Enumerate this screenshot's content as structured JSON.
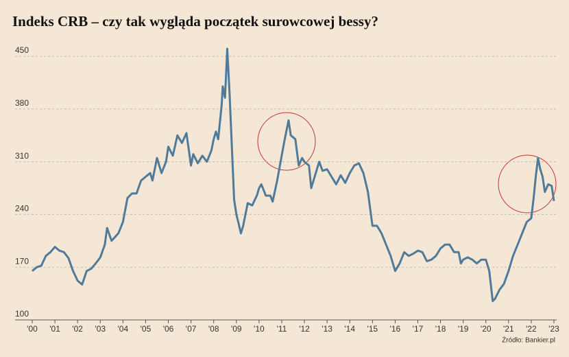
{
  "chart_data": {
    "type": "line",
    "title": "Indeks CRB – czy tak wygląda początek surowcowej bessy?",
    "source": "Źródło: Bankier.pl",
    "x": [
      2000.0,
      2000.2,
      2000.4,
      2000.6,
      2000.8,
      2001.0,
      2001.2,
      2001.4,
      2001.6,
      2001.8,
      2002.0,
      2002.2,
      2002.4,
      2002.6,
      2002.8,
      2003.0,
      2003.2,
      2003.3,
      2003.5,
      2003.8,
      2004.0,
      2004.2,
      2004.4,
      2004.6,
      2004.8,
      2005.0,
      2005.2,
      2005.3,
      2005.5,
      2005.7,
      2005.9,
      2006.0,
      2006.2,
      2006.4,
      2006.6,
      2006.8,
      2007.0,
      2007.1,
      2007.3,
      2007.5,
      2007.7,
      2007.9,
      2008.0,
      2008.1,
      2008.2,
      2008.35,
      2008.4,
      2008.5,
      2008.6,
      2008.7,
      2008.8,
      2008.9,
      2009.0,
      2009.1,
      2009.2,
      2009.3,
      2009.5,
      2009.7,
      2009.9,
      2010.0,
      2010.1,
      2010.3,
      2010.5,
      2010.6,
      2010.8,
      2010.95,
      2011.1,
      2011.3,
      2011.4,
      2011.6,
      2011.75,
      2011.9,
      2012.0,
      2012.2,
      2012.3,
      2012.5,
      2012.65,
      2012.8,
      2013.0,
      2013.2,
      2013.4,
      2013.6,
      2013.8,
      2014.0,
      2014.2,
      2014.4,
      2014.6,
      2014.8,
      2015.0,
      2015.2,
      2015.4,
      2015.6,
      2015.8,
      2016.0,
      2016.2,
      2016.4,
      2016.6,
      2016.8,
      2017.0,
      2017.2,
      2017.4,
      2017.6,
      2017.8,
      2018.0,
      2018.2,
      2018.4,
      2018.6,
      2018.8,
      2018.9,
      2019.0,
      2019.2,
      2019.4,
      2019.6,
      2019.8,
      2020.0,
      2020.15,
      2020.3,
      2020.4,
      2020.6,
      2020.8,
      2021.0,
      2021.2,
      2021.4,
      2021.6,
      2021.8,
      2022.0,
      2022.1,
      2022.2,
      2022.3,
      2022.4,
      2022.5,
      2022.6,
      2022.75,
      2022.9,
      2023.0
    ],
    "series": [
      {
        "name": "Indeks CRB",
        "color": "#4f7a99",
        "values": [
          165,
          170,
          172,
          185,
          190,
          197,
          192,
          190,
          182,
          165,
          152,
          147,
          165,
          168,
          175,
          183,
          200,
          222,
          205,
          215,
          230,
          262,
          268,
          268,
          285,
          290,
          295,
          285,
          315,
          295,
          310,
          330,
          318,
          345,
          335,
          348,
          305,
          320,
          308,
          318,
          310,
          325,
          340,
          350,
          340,
          385,
          410,
          395,
          460,
          400,
          330,
          260,
          240,
          228,
          215,
          225,
          255,
          252,
          265,
          275,
          280,
          265,
          265,
          257,
          285,
          310,
          335,
          365,
          345,
          340,
          305,
          315,
          310,
          305,
          275,
          295,
          310,
          298,
          300,
          290,
          280,
          292,
          282,
          295,
          305,
          308,
          295,
          270,
          225,
          225,
          215,
          200,
          185,
          165,
          175,
          190,
          185,
          188,
          192,
          190,
          178,
          180,
          185,
          195,
          200,
          200,
          190,
          190,
          175,
          180,
          183,
          180,
          175,
          180,
          180,
          165,
          125,
          128,
          140,
          148,
          165,
          185,
          200,
          215,
          230,
          235,
          260,
          290,
          315,
          300,
          290,
          270,
          280,
          278,
          258
        ]
      }
    ],
    "xlim": [
      2000,
      2023
    ],
    "xticks": [
      {
        "value": 2000,
        "label": "'00"
      },
      {
        "value": 2001,
        "label": "'01"
      },
      {
        "value": 2002,
        "label": "'02"
      },
      {
        "value": 2003,
        "label": "'03"
      },
      {
        "value": 2004,
        "label": "'04"
      },
      {
        "value": 2005,
        "label": "'05"
      },
      {
        "value": 2006,
        "label": "'06"
      },
      {
        "value": 2007,
        "label": "'07"
      },
      {
        "value": 2008,
        "label": "'08"
      },
      {
        "value": 2009,
        "label": "'09"
      },
      {
        "value": 2010,
        "label": "'10"
      },
      {
        "value": 2011,
        "label": "'11"
      },
      {
        "value": 2012,
        "label": "'12"
      },
      {
        "value": 2013,
        "label": "'13"
      },
      {
        "value": 2014,
        "label": "'14"
      },
      {
        "value": 2015,
        "label": "'15"
      },
      {
        "value": 2016,
        "label": "'16"
      },
      {
        "value": 2017,
        "label": "'17"
      },
      {
        "value": 2018,
        "label": "'18"
      },
      {
        "value": 2019,
        "label": "'19"
      },
      {
        "value": 2020,
        "label": "'20"
      },
      {
        "value": 2021,
        "label": "'21"
      },
      {
        "value": 2022,
        "label": "'22"
      },
      {
        "value": 2023,
        "label": "'23"
      }
    ],
    "ylim": [
      100,
      450
    ],
    "yticks": [
      100,
      170,
      240,
      310,
      380,
      450
    ],
    "grid": true
  }
}
